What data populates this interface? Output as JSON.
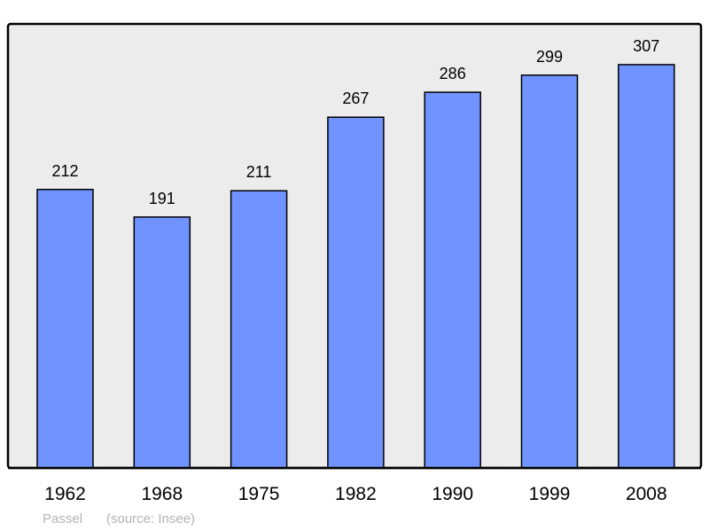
{
  "chart_data": {
    "type": "bar",
    "categories": [
      "1962",
      "1968",
      "1975",
      "1982",
      "1990",
      "1999",
      "2008"
    ],
    "values": [
      212,
      191,
      211,
      267,
      286,
      299,
      307
    ],
    "title": "",
    "xlabel": "",
    "ylabel": "",
    "ylim": [
      0,
      338
    ],
    "grid": false,
    "data_labels": true,
    "colors": {
      "bar": "#7093ff",
      "plot_background": "#ececec",
      "frame": "#000000",
      "footer_text": "#b3b3b3"
    }
  },
  "footer": {
    "author": "Passel",
    "source": "(source: Insee)"
  }
}
